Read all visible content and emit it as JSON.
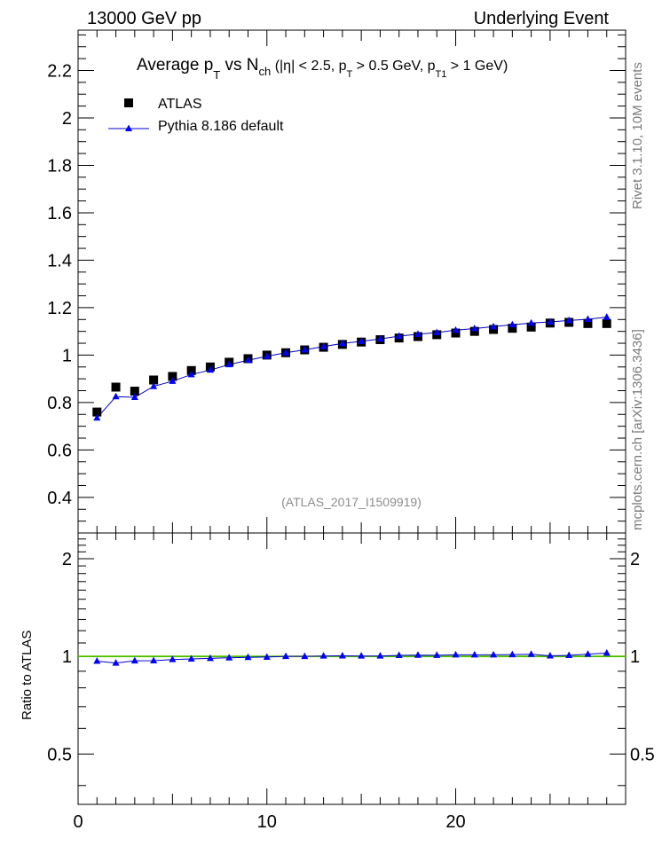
{
  "header": {
    "energy_label": "13000 GeV pp",
    "process_label": "Underlying Event"
  },
  "side_labels": {
    "rivet": "Rivet 3.1.10,  10M events",
    "mcplots": "mcplots.cern.ch [arXiv:1306.3436]"
  },
  "analysis_id": "(ATLAS_2017_I1509919)",
  "title_parts": {
    "t1": "Average p",
    "t1_sub": "T",
    "t2": " vs N",
    "t2_sub": "ch",
    "t3": " (|η| < 2.5, p",
    "t3_sub": "T",
    "t4": " > 0.5 GeV, p",
    "t4_sub": "T1",
    "t5": " > 1 GeV)"
  },
  "legend": {
    "data_label": "ATLAS",
    "mc_label": "Pythia 8.186 default"
  },
  "colors": {
    "data": "#000000",
    "mc_line": "#0000cc",
    "mc_marker": "#0000ff",
    "ratio_band": "#b2e000",
    "ratio_ref": "#00aa00",
    "axis": "#000000",
    "analysis_text": "#8c8c8c",
    "side_text": "#7a7a7a"
  },
  "chart_data": [
    {
      "type": "scatter",
      "panel": "main",
      "title": "Average pT vs Nch (|η| < 2.5, pT > 0.5 GeV, pT1 > 1 GeV)",
      "xlim": [
        0,
        29
      ],
      "ylim": [
        0.25,
        2.37
      ],
      "ytick_values": [
        0.4,
        0.6,
        0.8,
        1.0,
        1.2,
        1.4,
        1.6,
        1.8,
        2.0,
        2.2
      ],
      "ytick_labels": [
        "0.4",
        "0.6",
        "0.8",
        "1",
        "1.2",
        "1.4",
        "1.6",
        "1.8",
        "2",
        "2.2"
      ],
      "legend_position": "top-left",
      "series": [
        {
          "name": "ATLAS",
          "x": [
            1,
            2,
            3,
            4,
            5,
            6,
            7,
            8,
            9,
            10,
            11,
            12,
            13,
            14,
            15,
            16,
            17,
            18,
            19,
            20,
            21,
            22,
            23,
            24,
            25,
            26,
            27,
            28
          ],
          "values": [
            0.76,
            0.865,
            0.848,
            0.895,
            0.91,
            0.935,
            0.95,
            0.97,
            0.985,
            1.0,
            1.01,
            1.022,
            1.033,
            1.045,
            1.055,
            1.065,
            1.072,
            1.078,
            1.086,
            1.093,
            1.1,
            1.108,
            1.113,
            1.118,
            1.135,
            1.138,
            1.133,
            1.133
          ]
        },
        {
          "name": "Pythia 8.186 default",
          "x": [
            1,
            2,
            3,
            4,
            5,
            6,
            7,
            8,
            9,
            10,
            11,
            12,
            13,
            14,
            15,
            16,
            17,
            18,
            19,
            20,
            21,
            22,
            23,
            24,
            25,
            26,
            27,
            28
          ],
          "values": [
            0.735,
            0.825,
            0.822,
            0.868,
            0.89,
            0.918,
            0.937,
            0.96,
            0.978,
            0.995,
            1.01,
            1.022,
            1.036,
            1.049,
            1.058,
            1.068,
            1.08,
            1.088,
            1.095,
            1.105,
            1.112,
            1.12,
            1.128,
            1.135,
            1.14,
            1.146,
            1.151,
            1.16
          ]
        }
      ]
    },
    {
      "type": "scatter",
      "panel": "ratio",
      "ylabel": "Ratio to ATLAS",
      "xlim": [
        0,
        29
      ],
      "ylim": [
        0.35,
        2.4
      ],
      "ytick_values": [
        0.5,
        1,
        2
      ],
      "ytick_labels": [
        "0.5",
        "1",
        "2"
      ],
      "xtick_values": [
        0,
        10,
        20
      ],
      "xtick_labels": [
        "0",
        "10",
        "20"
      ],
      "series": [
        {
          "name": "Pythia 8.186 default",
          "x": [
            1,
            2,
            3,
            4,
            5,
            6,
            7,
            8,
            9,
            10,
            11,
            12,
            13,
            14,
            15,
            16,
            17,
            18,
            19,
            20,
            21,
            22,
            23,
            24,
            25,
            26,
            27,
            28
          ],
          "values": [
            0.967,
            0.954,
            0.969,
            0.97,
            0.978,
            0.982,
            0.986,
            0.99,
            0.993,
            0.995,
            1.0,
            1.0,
            1.003,
            1.004,
            1.003,
            1.003,
            1.007,
            1.009,
            1.008,
            1.011,
            1.011,
            1.011,
            1.013,
            1.015,
            1.004,
            1.007,
            1.016,
            1.024
          ]
        }
      ]
    }
  ]
}
